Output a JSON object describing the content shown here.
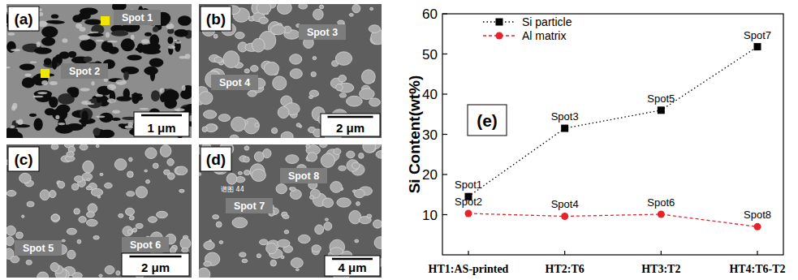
{
  "panels": [
    {
      "label": "(a)",
      "spots": [
        "Spot 1",
        "Spot 2"
      ],
      "scale_bar": "1 μm"
    },
    {
      "label": "(b)",
      "spots": [
        "Spot 3",
        "Spot 4"
      ],
      "scale_bar": "2 μm"
    },
    {
      "label": "(c)",
      "spots": [
        "Spot 5",
        "Spot 6"
      ],
      "scale_bar": "2 μm"
    },
    {
      "label": "(d)",
      "spots": [
        "Spot 7",
        "Spot 8"
      ],
      "scale_bar": "4 μm",
      "annotation": "谱图 44"
    }
  ],
  "chart_data": {
    "type": "line",
    "title": "(e)",
    "y_label": "Si Content(wt%)",
    "categories": [
      "HT1:AS-printed",
      "HT2:T6",
      "HT3:T2",
      "HT4:T6-T2"
    ],
    "ylim": [
      0,
      60
    ],
    "yticks": [
      10,
      20,
      30,
      40,
      50,
      60
    ],
    "legend": "upper left",
    "series": [
      {
        "name": "Si particle",
        "color": "#000000",
        "marker": "square",
        "line_style": "dotted",
        "values": [
          14.5,
          31.5,
          36,
          51.8
        ],
        "point_labels": [
          "Spot1",
          "Spot3",
          "Spot5",
          "Spot7"
        ]
      },
      {
        "name": "Al matrix",
        "color": "#e8222a",
        "marker": "circle",
        "line_style": "dashed",
        "values": [
          10.3,
          9.6,
          10.1,
          7.0
        ],
        "point_labels": [
          "Spot2",
          "Spot4",
          "Spot6",
          "Spot8"
        ]
      }
    ]
  }
}
